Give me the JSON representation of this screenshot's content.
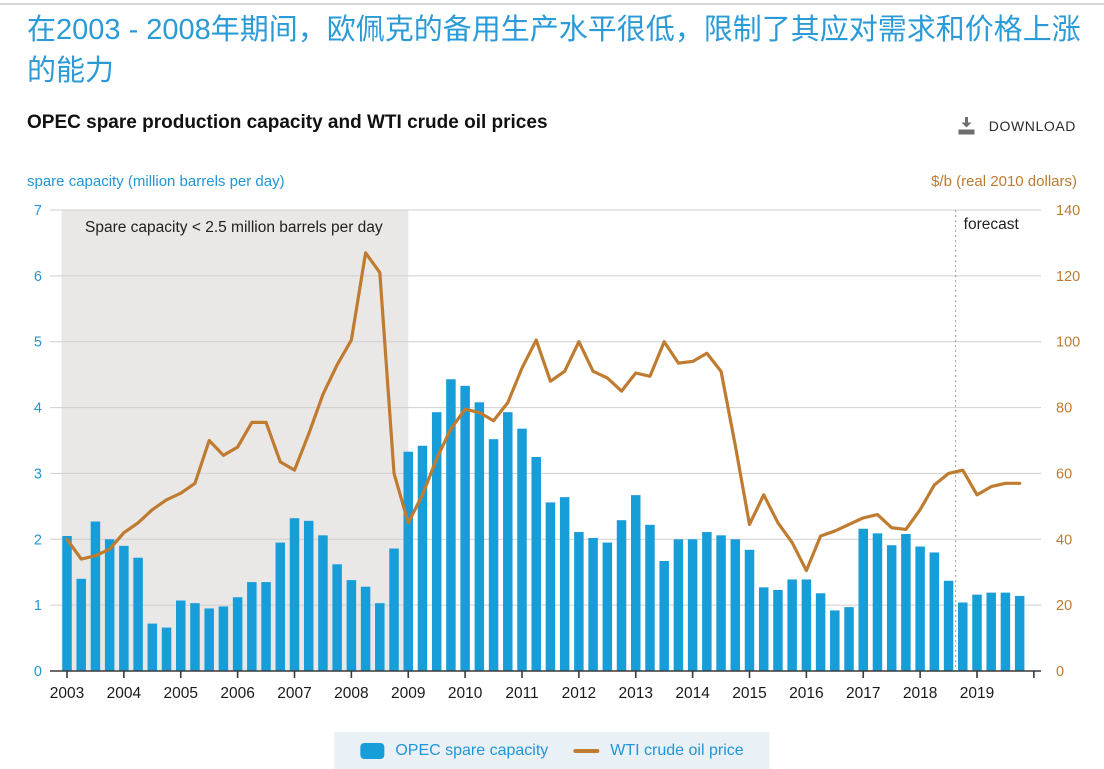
{
  "page": {
    "heading_zh": "在2003 - 2008年期间，欧佩克的备用生产水平很低，限制了其应对需求和价格上涨的能力",
    "chart_title": "OPEC spare production capacity and WTI crude oil prices",
    "download_label": "DOWNLOAD"
  },
  "colors": {
    "bar_blue": "#179dd8",
    "line_orange": "#bf7c30",
    "blue_text": "#2196d6",
    "orange_text": "#bd7b32",
    "shaded_region": "#eae8e6",
    "gridline": "#cfcfcf",
    "axis_line": "#3a3a3a",
    "tick_label": "#1a1a1a",
    "legend_bg": "#e9f0f6"
  },
  "chart_data": {
    "type": "bar",
    "subtype": "bar+line dual-axis combo, quarterly data",
    "title": "OPEC spare production capacity and WTI crude oil prices",
    "x_years": [
      2003,
      2004,
      2005,
      2006,
      2007,
      2008,
      2009,
      2010,
      2011,
      2012,
      2013,
      2014,
      2015,
      2016,
      2017,
      2018,
      2019
    ],
    "quarters_per_year": 4,
    "left_axis": {
      "label": "spare capacity (million barrels per day)",
      "min": 0,
      "max": 7,
      "step": 1
    },
    "right_axis": {
      "label": "$/b (real 2010 dollars)",
      "min": 0,
      "max": 140,
      "step": 20
    },
    "grid": true,
    "legend_position": "bottom-center",
    "series": [
      {
        "name": "OPEC spare capacity",
        "type": "bar",
        "axis": "left",
        "values": [
          2.05,
          1.4,
          2.27,
          2.0,
          1.9,
          1.72,
          0.72,
          0.66,
          1.07,
          1.03,
          0.95,
          0.98,
          1.12,
          1.35,
          1.35,
          1.95,
          2.32,
          2.28,
          2.06,
          1.62,
          1.38,
          1.28,
          1.03,
          1.86,
          3.33,
          3.42,
          3.93,
          4.43,
          4.33,
          4.08,
          3.52,
          3.93,
          3.68,
          3.25,
          2.56,
          2.64,
          2.11,
          2.02,
          1.95,
          2.29,
          2.67,
          2.22,
          1.67,
          2.0,
          2.0,
          2.11,
          2.06,
          2.0,
          1.84,
          1.27,
          1.23,
          1.39,
          1.39,
          1.18,
          0.92,
          0.97,
          2.16,
          2.09,
          1.91,
          2.08,
          1.89,
          1.8,
          1.37,
          1.04,
          1.16,
          1.19,
          1.19,
          1.14
        ]
      },
      {
        "name": "WTI crude oil price",
        "type": "line",
        "axis": "right",
        "values": [
          40,
          34,
          35,
          37,
          42,
          45,
          49,
          52,
          54,
          57,
          70,
          65.5,
          68,
          75.5,
          75.5,
          63.5,
          61,
          72,
          84,
          93,
          100.5,
          127,
          121,
          60,
          45,
          53.5,
          64.5,
          73.5,
          79.5,
          78.5,
          76,
          81.5,
          92,
          100.5,
          88,
          91,
          100,
          91,
          89,
          85,
          90.5,
          89.5,
          100,
          93.5,
          94,
          96.5,
          91,
          68.5,
          44.5,
          53.5,
          45,
          39,
          30.5,
          41,
          42.5,
          44.5,
          46.5,
          47.5,
          43.5,
          43,
          49,
          56.5,
          60,
          61,
          53.5,
          56,
          57,
          57
        ]
      }
    ],
    "shaded_region": {
      "label": "Spare capacity < 2.5 million barrels per day",
      "from": "2003 Q1",
      "to": "2008 Q4"
    },
    "forecast_divider": {
      "label": "forecast",
      "starts_at": "2018 Q4"
    }
  }
}
